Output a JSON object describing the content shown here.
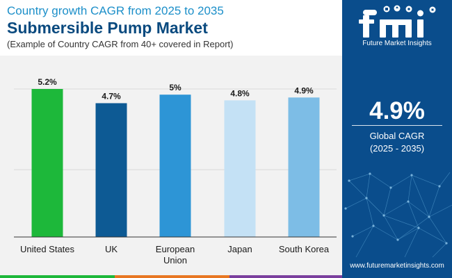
{
  "header": {
    "title_line1": "Country growth CAGR from 2025 to 2035",
    "title_line2": "Submersible Pump Market",
    "subtitle": "(Example of Country CAGR from 40+ covered in Report)"
  },
  "chart_data": {
    "type": "bar",
    "title": "Submersible Pump Market",
    "subtitle": "(Example of Country CAGR from 40+ covered in Report)",
    "categories": [
      "United States",
      "UK",
      "European Union",
      "Japan",
      "South Korea"
    ],
    "category_lines": [
      [
        "United States"
      ],
      [
        "UK"
      ],
      [
        "European",
        "Union"
      ],
      [
        "Japan"
      ],
      [
        "South Korea"
      ]
    ],
    "values": [
      5.2,
      4.7,
      5.0,
      4.8,
      4.9
    ],
    "value_labels": [
      "5.2%",
      "4.7%",
      "5%",
      "4.8%",
      "4.9%"
    ],
    "colors": [
      "#1db83a",
      "#0d5a94",
      "#2d95d6",
      "#c4e1f5",
      "#7dbde6"
    ],
    "xlabel": "",
    "ylabel": "",
    "ylim": [
      0,
      5.2
    ],
    "gridlines": [
      0,
      5.2
    ],
    "grid": true,
    "legend": "none"
  },
  "sidebar": {
    "logo_text": "Future Market Insights",
    "cagr_value": "4.9%",
    "cagr_label": "Global CAGR",
    "cagr_range": "(2025 - 2035)",
    "website": "www.futuremarketinsights.com",
    "background_color": "#0a4d8c"
  },
  "bottom_bar": {
    "colors": [
      "#1db83a",
      "#e87722",
      "#7b3f9e",
      "#0a4d8c"
    ]
  }
}
